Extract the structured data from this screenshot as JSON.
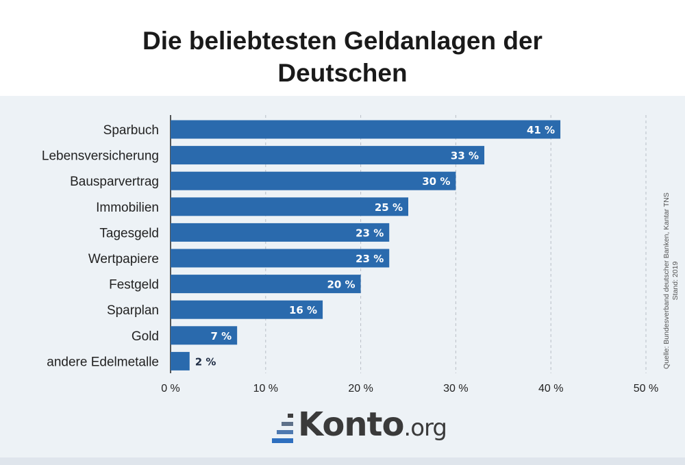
{
  "chart_data": {
    "type": "bar",
    "orientation": "horizontal",
    "title": "Die beliebtesten Geldanlagen der Deutschen",
    "categories": [
      "Sparbuch",
      "Lebensversicherung",
      "Bausparvertrag",
      "Immobilien",
      "Tagesgeld",
      "Wertpapiere",
      "Festgeld",
      "Sparplan",
      "Gold",
      "andere Edelmetalle"
    ],
    "values": [
      41,
      33,
      30,
      25,
      23,
      23,
      20,
      16,
      7,
      2
    ],
    "data_labels": [
      "41 %",
      "33 %",
      "30 %",
      "25 %",
      "23 %",
      "23 %",
      "20 %",
      "16 %",
      "7 %",
      "2 %"
    ],
    "xlim": [
      0,
      50
    ],
    "xticks": [
      0,
      10,
      20,
      30,
      40,
      50
    ],
    "xtick_labels": [
      "0 %",
      "10 %",
      "20 %",
      "30 %",
      "40 %",
      "50 %"
    ],
    "grid": "vertical dashed",
    "bar_color": "#2a6aad",
    "xlabel": "",
    "ylabel": ""
  },
  "source": {
    "line1": "Quelle: Bundesverband deutscher Banken, Kantar TNS",
    "line2": "Stand: 2019"
  },
  "logo": {
    "name": "Konto",
    "suffix": ".org"
  }
}
